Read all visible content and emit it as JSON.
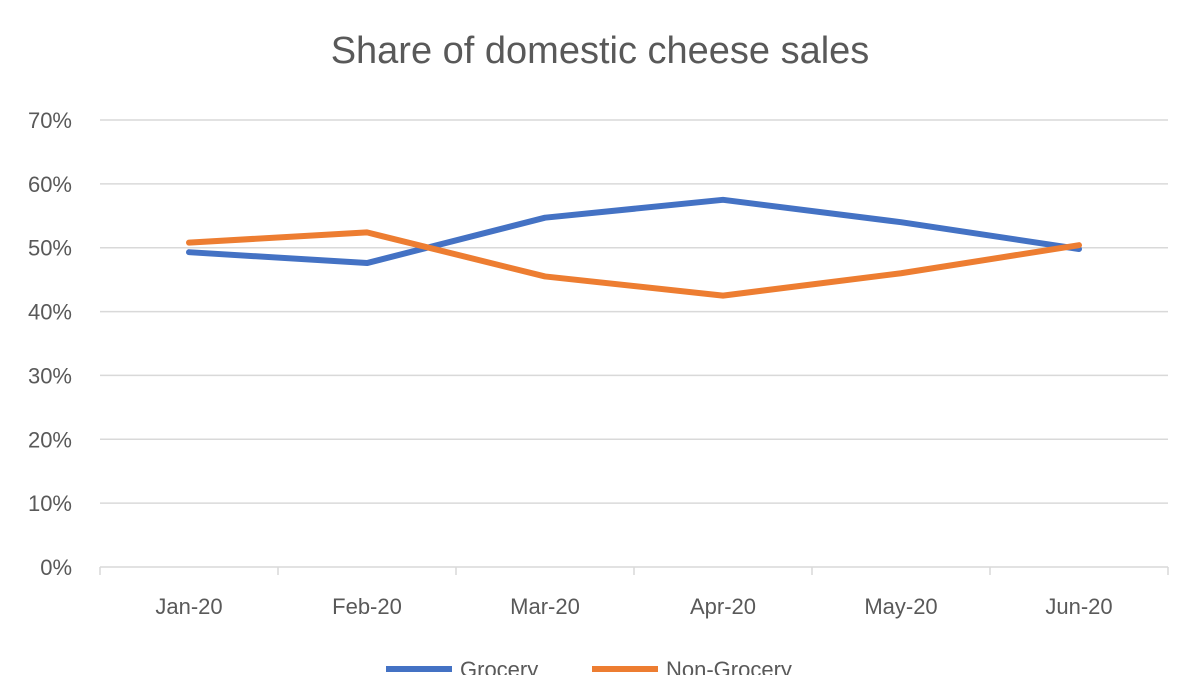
{
  "chart_data": {
    "type": "line",
    "title": "Share of domestic cheese sales",
    "xlabel": "",
    "ylabel": "",
    "categories": [
      "Jan-20",
      "Feb-20",
      "Mar-20",
      "Apr-20",
      "May-20",
      "Jun-20"
    ],
    "ylim": [
      0,
      70
    ],
    "yticks": [
      0,
      10,
      20,
      30,
      40,
      50,
      60,
      70
    ],
    "ytick_labels": [
      "0%",
      "10%",
      "20%",
      "30%",
      "40%",
      "50%",
      "60%",
      "70%"
    ],
    "grid": true,
    "legend_position": "bottom",
    "series": [
      {
        "name": "Grocery",
        "color": "#4472C4",
        "values": [
          49.3,
          47.6,
          54.7,
          57.5,
          54.0,
          49.8
        ]
      },
      {
        "name": "Non-Grocery",
        "color": "#ED7D31",
        "values": [
          50.8,
          52.4,
          45.5,
          42.5,
          46.0,
          50.4
        ]
      }
    ]
  }
}
